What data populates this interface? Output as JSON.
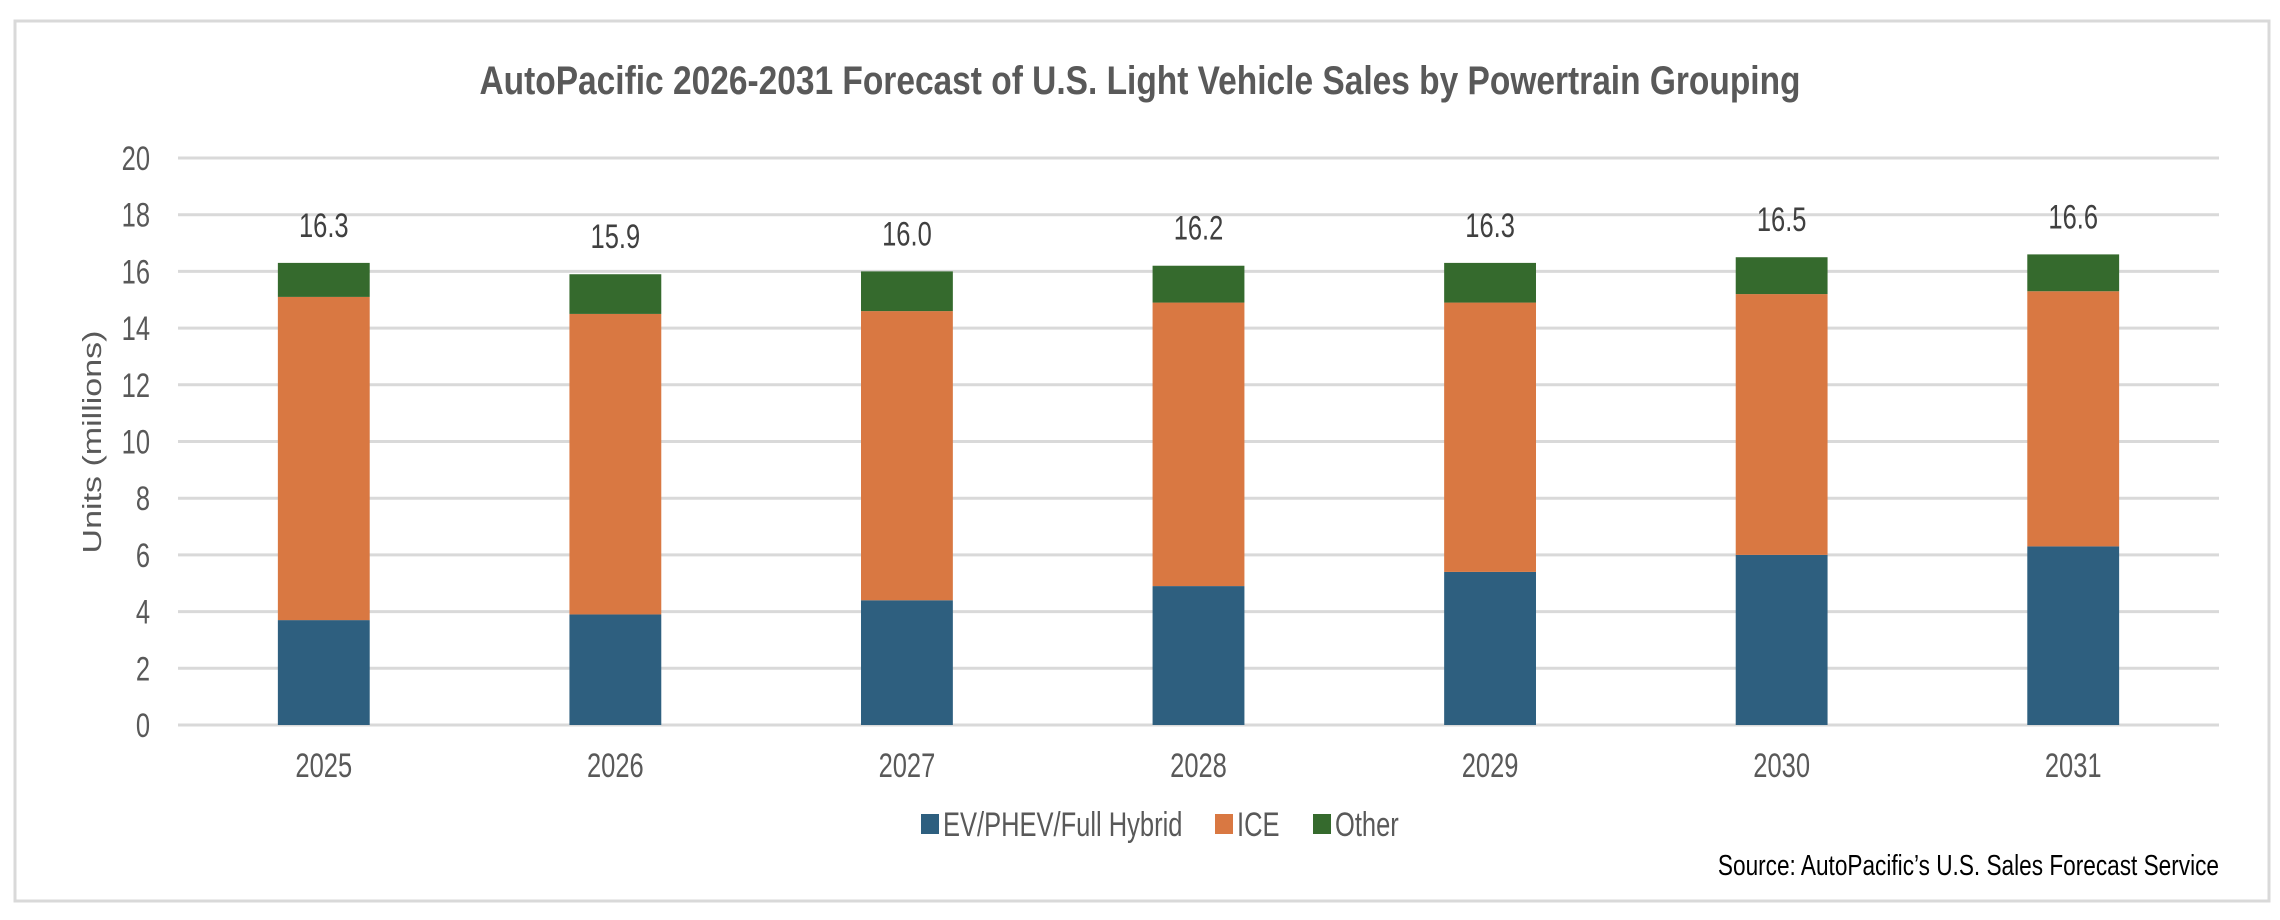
{
  "chart_data": {
    "type": "bar",
    "stacked": true,
    "title": "AutoPacific 2026-2031 Forecast of U.S. Light Vehicle Sales by Powertrain Grouping",
    "xlabel": "",
    "ylabel": "Units (millions)",
    "ylim": [
      0,
      20
    ],
    "yticks": [
      0,
      2,
      4,
      6,
      8,
      10,
      12,
      14,
      16,
      18,
      20
    ],
    "grid": true,
    "legend_position": "bottom",
    "categories": [
      "2025",
      "2026",
      "2027",
      "2028",
      "2029",
      "2030",
      "2031"
    ],
    "series": [
      {
        "name": "EV/PHEV/Full Hybrid",
        "color": "#2E5F7F",
        "values": [
          3.7,
          3.9,
          4.4,
          4.9,
          5.4,
          6.0,
          6.3
        ]
      },
      {
        "name": "ICE",
        "color": "#D97842",
        "values": [
          11.4,
          10.6,
          10.2,
          10.0,
          9.5,
          9.2,
          9.0
        ]
      },
      {
        "name": "Other",
        "color": "#356A2D",
        "values": [
          1.2,
          1.4,
          1.4,
          1.3,
          1.4,
          1.3,
          1.3
        ]
      }
    ],
    "total_labels": [
      "16.3",
      "15.9",
      "16.0",
      "16.2",
      "16.3",
      "16.5",
      "16.6"
    ],
    "source": "Source: AutoPacific’s U.S. Sales Forecast Service"
  }
}
